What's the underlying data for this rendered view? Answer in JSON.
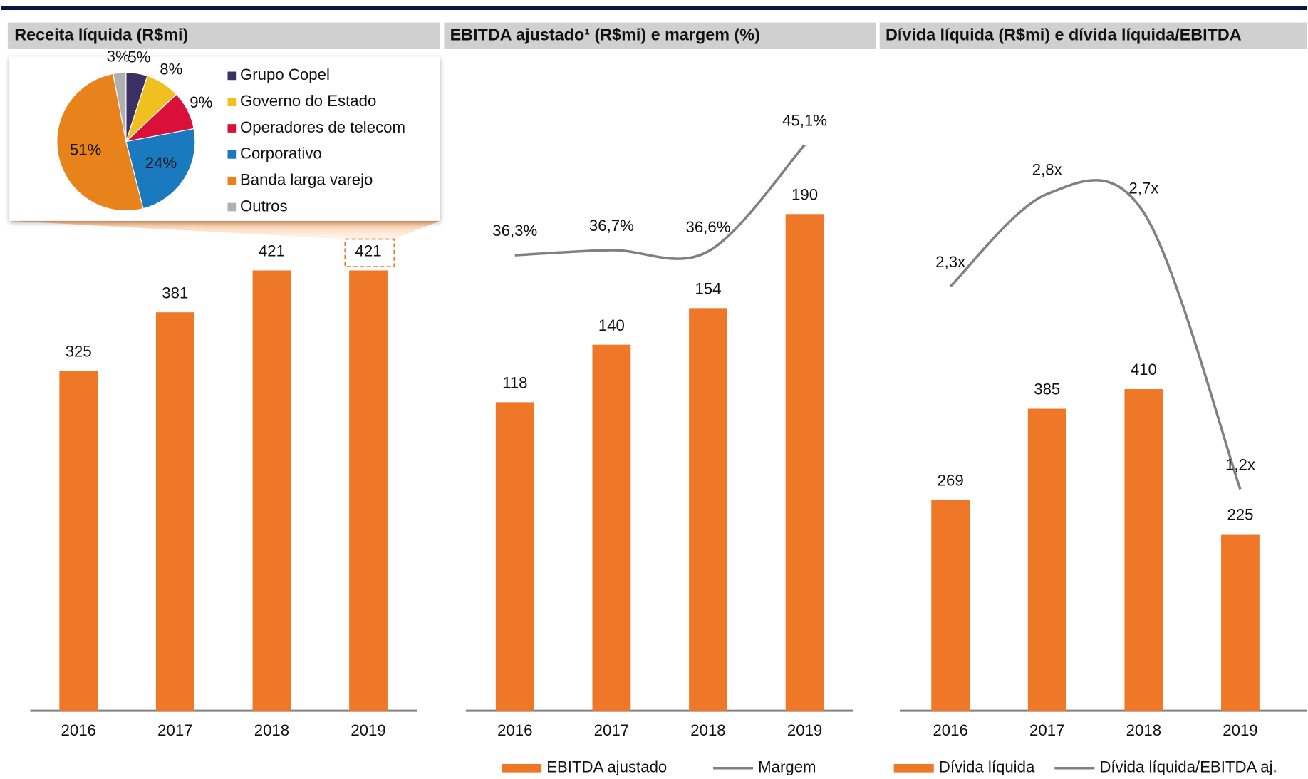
{
  "chart_data": [
    {
      "type": "bar",
      "title": "Receita líquida (R$mi)",
      "categories": [
        "2016",
        "2017",
        "2018",
        "2019"
      ],
      "values": [
        325,
        381,
        421,
        421
      ],
      "color": "#ee7728",
      "ylim": [
        0,
        600
      ]
    },
    {
      "type": "pie",
      "categories": [
        "Grupo Copel",
        "Governo do Estado",
        "Operadores de telecom",
        "Corporativo",
        "Banda larga varejo",
        "Outros"
      ],
      "values": [
        5,
        8,
        9,
        24,
        51,
        3
      ],
      "value_labels": [
        "5%",
        "8%",
        "9%",
        "24%",
        "51%",
        "3%"
      ],
      "colors": [
        "#3b2f63",
        "#f0c020",
        "#d9103a",
        "#1a7abf",
        "#e8821a",
        "#b0b0b0"
      ],
      "legend": "right"
    },
    {
      "type": "combo",
      "title": "EBITDA ajustado¹ (R$mi) e margem (%)",
      "categories": [
        "2016",
        "2017",
        "2018",
        "2019"
      ],
      "ylim": [
        0,
        240
      ],
      "y2lim": [
        0,
        50
      ],
      "series": [
        {
          "name": "EBITDA ajustado",
          "color": "#ee7728",
          "values": [
            118,
            140,
            154,
            190
          ]
        },
        {
          "name": "Margem",
          "color": "#808080",
          "axis": "y2",
          "values": [
            36.3,
            36.7,
            36.6,
            45.1
          ],
          "value_labels": [
            "36,3%",
            "36,7%",
            "36,6%",
            "45,1%"
          ]
        }
      ]
    },
    {
      "type": "combo",
      "title": "Dívida líquida (R$mi) e dívida líquida/EBITDA",
      "categories": [
        "2016",
        "2017",
        "2018",
        "2019"
      ],
      "ylim": [
        0,
        800
      ],
      "y2lim": [
        0,
        3.4
      ],
      "series": [
        {
          "name": "Dívida líquida",
          "color": "#ee7728",
          "values": [
            269,
            385,
            410,
            225
          ]
        },
        {
          "name": "Dívida líquida/EBITDA aj.",
          "color": "#808080",
          "axis": "y2",
          "values": [
            2.3,
            2.8,
            2.7,
            1.2
          ],
          "value_labels": [
            "2,3x",
            "2,8x",
            "2,7x",
            "1,2x"
          ]
        }
      ]
    }
  ]
}
